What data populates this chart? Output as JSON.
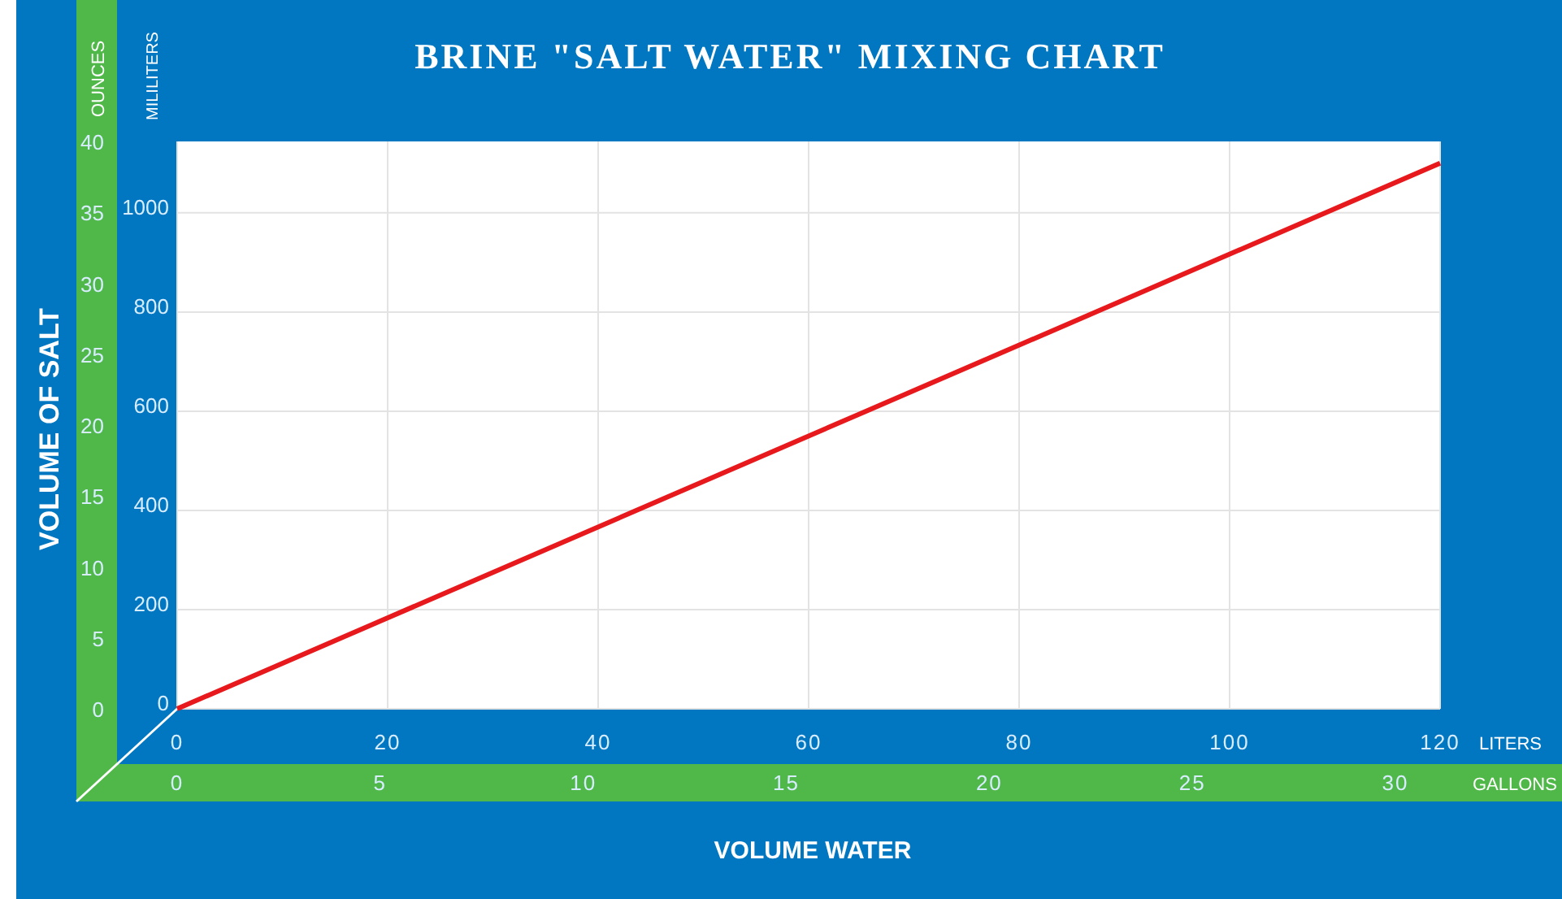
{
  "chart_data": {
    "type": "line",
    "title": "BRINE \"SALT WATER\" MIXING CHART",
    "xlabel": "VOLUME WATER",
    "ylabel": "VOLUME OF SALT",
    "x2label": "GALLONS",
    "y2label": "MILILITERS",
    "annotations": [
      "OUNCES",
      "LITERS"
    ],
    "xlim": [
      0,
      120
    ],
    "xticks": [
      0,
      20,
      40,
      60,
      80,
      100,
      120
    ],
    "x2lim": [
      0,
      31.1
    ],
    "x2ticks": [
      0,
      5,
      10,
      15,
      20,
      25,
      30
    ],
    "ylim": [
      0,
      40
    ],
    "yticks": [
      0,
      5,
      10,
      15,
      20,
      25,
      30,
      35,
      40
    ],
    "y2lim": [
      0,
      1144
    ],
    "y2ticks": [
      0,
      200,
      400,
      600,
      800,
      1000
    ],
    "grid": true,
    "marker": "none",
    "line_style": "solid",
    "series": [
      {
        "color": "#e8191c",
        "axis": "y2",
        "x": [
          0,
          120
        ],
        "values": [
          0,
          1100
        ]
      }
    ]
  }
}
